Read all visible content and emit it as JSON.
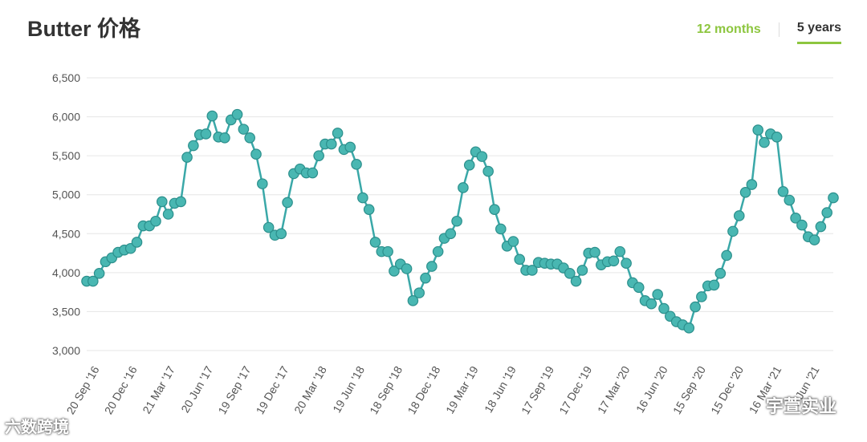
{
  "title": "Butter 价格",
  "tabs": {
    "twelve_months": "12 months",
    "five_years": "5 years"
  },
  "watermarks": {
    "left": "六数跨境",
    "right": "宇萱实业"
  },
  "chart_data": {
    "type": "line",
    "ylim": [
      3000,
      6500
    ],
    "yticks": [
      3000,
      3500,
      4000,
      4500,
      5000,
      5500,
      6000,
      6500
    ],
    "ytick_labels": [
      "3,000",
      "3,500",
      "4,000",
      "4,500",
      "5,000",
      "5,500",
      "6,000",
      "6,500"
    ],
    "xtick_labels": [
      "20 Sep '16",
      "20 Dec '16",
      "21 Mar '17",
      "20 Jun '17",
      "19 Sep '17",
      "19 Dec '17",
      "20 Mar '18",
      "19 Jun '18",
      "18 Sep '18",
      "18 Dec '18",
      "19 Mar '19",
      "18 Jun '19",
      "17 Sep '19",
      "17 Dec '19",
      "17 Mar '20",
      "16 Jun '20",
      "15 Sep '20",
      "15 Dec '20",
      "16 Mar '21",
      "15 Jun '21"
    ],
    "colors": {
      "line": "#3aa8a8",
      "marker": "#49b7b2",
      "marker_edge": "#2c8f8c",
      "grid": "#e6e6e6"
    },
    "values": [
      3890,
      3890,
      3990,
      4140,
      4190,
      4260,
      4290,
      4310,
      4390,
      4600,
      4600,
      4660,
      4910,
      4750,
      4890,
      4910,
      5480,
      5630,
      5770,
      5780,
      6010,
      5740,
      5730,
      5960,
      6030,
      5840,
      5730,
      5520,
      5140,
      4580,
      4480,
      4500,
      4900,
      5270,
      5330,
      5280,
      5280,
      5500,
      5650,
      5650,
      5790,
      5580,
      5610,
      5390,
      4960,
      4810,
      4390,
      4270,
      4270,
      4020,
      4110,
      4050,
      3640,
      3740,
      3930,
      4080,
      4270,
      4440,
      4500,
      4660,
      5090,
      5380,
      5550,
      5490,
      5300,
      4810,
      4560,
      4340,
      4400,
      4170,
      4030,
      4030,
      4130,
      4120,
      4110,
      4110,
      4060,
      3990,
      3890,
      4030,
      4250,
      4260,
      4100,
      4140,
      4150,
      4270,
      4120,
      3870,
      3810,
      3640,
      3600,
      3720,
      3540,
      3440,
      3370,
      3330,
      3290,
      3560,
      3690,
      3830,
      3840,
      3990,
      4220,
      4530,
      4730,
      5030,
      5130,
      5830,
      5670,
      5780,
      5740,
      5040,
      4930,
      4700,
      4610,
      4460,
      4420,
      4590,
      4770,
      4960
    ]
  }
}
